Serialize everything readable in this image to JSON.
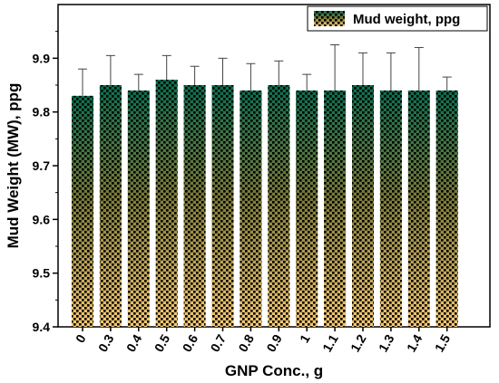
{
  "chart_data": {
    "type": "bar",
    "title": "",
    "xlabel": "GNP Conc., g",
    "ylabel": "Mud Weight (MW), ppg",
    "categories": [
      "0",
      "0.3",
      "0.4",
      "0.5",
      "0.6",
      "0.7",
      "0.8",
      "0.9",
      "1",
      "1.1",
      "1.2",
      "1.3",
      "1.4",
      "1.5"
    ],
    "series": [
      {
        "name": "Mud weight, ppg",
        "values": [
          9.83,
          9.85,
          9.84,
          9.86,
          9.85,
          9.85,
          9.84,
          9.85,
          9.84,
          9.84,
          9.85,
          9.84,
          9.84,
          9.84
        ],
        "errors": [
          0.05,
          0.055,
          0.03,
          0.045,
          0.035,
          0.05,
          0.05,
          0.045,
          0.03,
          0.085,
          0.06,
          0.07,
          0.08,
          0.025
        ]
      }
    ],
    "ylim": [
      9.4,
      10.0
    ],
    "yticks": [
      "9.4",
      "9.5",
      "9.6",
      "9.7",
      "9.8",
      "9.9"
    ],
    "grid": false,
    "legend_position": "top-right",
    "colors": {
      "bar_top": "#0b6e4f",
      "bar_mid": "#7a7a3a",
      "bar_bottom": "#f6c873",
      "dots": "#000000"
    }
  }
}
